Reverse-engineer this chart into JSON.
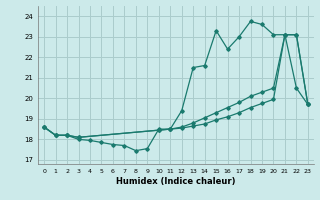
{
  "xlabel": "Humidex (Indice chaleur)",
  "bg_color": "#cceaea",
  "grid_color": "#aacccc",
  "line_color": "#1a7a6e",
  "xlim": [
    -0.5,
    23.5
  ],
  "ylim": [
    16.8,
    24.5
  ],
  "yticks": [
    17,
    18,
    19,
    20,
    21,
    22,
    23,
    24
  ],
  "xticks": [
    0,
    1,
    2,
    3,
    4,
    5,
    6,
    7,
    8,
    9,
    10,
    11,
    12,
    13,
    14,
    15,
    16,
    17,
    18,
    19,
    20,
    21,
    22,
    23
  ],
  "line1_x": [
    0,
    1,
    2,
    3,
    4,
    5,
    6,
    7,
    8,
    9,
    10,
    11,
    12,
    13,
    14,
    15,
    16,
    17,
    18,
    19,
    20,
    21,
    22,
    23
  ],
  "line1_y": [
    18.6,
    18.2,
    18.2,
    18.0,
    17.95,
    17.85,
    17.75,
    17.7,
    17.45,
    17.55,
    18.5,
    18.5,
    19.4,
    21.5,
    21.6,
    23.3,
    22.4,
    23.0,
    23.75,
    23.6,
    23.1,
    23.1,
    20.5,
    19.7
  ],
  "line2_x": [
    0,
    1,
    2,
    3,
    10,
    11,
    12,
    13,
    14,
    15,
    16,
    17,
    18,
    19,
    20,
    21,
    22,
    23
  ],
  "line2_y": [
    18.6,
    18.2,
    18.2,
    18.1,
    18.45,
    18.5,
    18.55,
    18.65,
    18.75,
    18.95,
    19.1,
    19.3,
    19.55,
    19.75,
    19.95,
    23.1,
    23.1,
    19.7
  ],
  "line3_x": [
    0,
    1,
    2,
    3,
    10,
    11,
    12,
    13,
    14,
    15,
    16,
    17,
    18,
    19,
    20,
    21,
    22,
    23
  ],
  "line3_y": [
    18.6,
    18.2,
    18.2,
    18.1,
    18.45,
    18.5,
    18.6,
    18.8,
    19.05,
    19.3,
    19.55,
    19.8,
    20.1,
    20.3,
    20.5,
    23.1,
    23.1,
    19.7
  ]
}
